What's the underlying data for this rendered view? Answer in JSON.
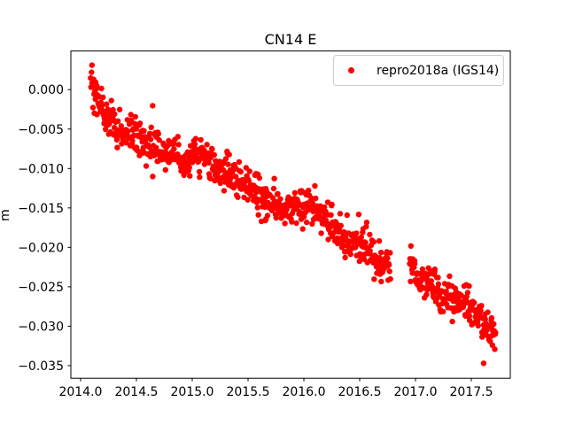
{
  "chart_data": {
    "type": "scatter",
    "title": "CN14 E",
    "xlabel": "",
    "ylabel": "m",
    "xlim": [
      2013.913,
      2017.849
    ],
    "ylim": [
      -0.0366,
      0.0049
    ],
    "grid": false,
    "xticks": {
      "values": [
        2014.0,
        2014.5,
        2015.0,
        2015.5,
        2016.0,
        2016.5,
        2017.0,
        2017.5
      ],
      "labels": [
        "2014.0",
        "2014.5",
        "2015.0",
        "2015.5",
        "2016.0",
        "2016.5",
        "2017.0",
        "2017.5"
      ]
    },
    "yticks": {
      "values": [
        0.0,
        -0.005,
        -0.01,
        -0.015,
        -0.02,
        -0.025,
        -0.03,
        -0.035
      ],
      "labels": [
        "0.000",
        "−0.005",
        "−0.010",
        "−0.015",
        "−0.020",
        "−0.025",
        "−0.030",
        "−0.035"
      ]
    },
    "legend": {
      "position": "upper right",
      "entries": [
        {
          "label": "repro2018a (IGS14)",
          "color": "#ff0000",
          "marker": "circle"
        }
      ]
    },
    "series": [
      {
        "name": "repro2018a (IGS14)",
        "color": "#ff0000",
        "marker_radius_px": 3.2,
        "x_start": 2014.09,
        "x_end": 2017.72,
        "points_per_year": 260,
        "gaps": [
          [
            2016.775,
            2016.945
          ]
        ],
        "noise_std": 0.00115,
        "outlier_rate": 0.012,
        "outlier_scale": 0.003,
        "seed": 42,
        "trend": [
          [
            2014.09,
            0.0006
          ],
          [
            2014.13,
            -0.0005
          ],
          [
            2014.18,
            -0.002
          ],
          [
            2014.25,
            -0.0036
          ],
          [
            2014.33,
            -0.0046
          ],
          [
            2014.42,
            -0.0056
          ],
          [
            2014.52,
            -0.0064
          ],
          [
            2014.65,
            -0.007
          ],
          [
            2014.8,
            -0.008
          ],
          [
            2014.95,
            -0.0092
          ],
          [
            2015.05,
            -0.0078
          ],
          [
            2015.12,
            -0.0088
          ],
          [
            2015.25,
            -0.01
          ],
          [
            2015.4,
            -0.0114
          ],
          [
            2015.55,
            -0.0128
          ],
          [
            2015.7,
            -0.0144
          ],
          [
            2015.82,
            -0.015
          ],
          [
            2015.92,
            -0.0147
          ],
          [
            2016.02,
            -0.0152
          ],
          [
            2016.12,
            -0.0156
          ],
          [
            2016.25,
            -0.0172
          ],
          [
            2016.4,
            -0.0192
          ],
          [
            2016.55,
            -0.0202
          ],
          [
            2016.68,
            -0.0216
          ],
          [
            2016.775,
            -0.0226
          ],
          [
            2016.95,
            -0.0222
          ],
          [
            2017.05,
            -0.024
          ],
          [
            2017.18,
            -0.0252
          ],
          [
            2017.32,
            -0.0263
          ],
          [
            2017.45,
            -0.0272
          ],
          [
            2017.56,
            -0.0288
          ],
          [
            2017.65,
            -0.03
          ],
          [
            2017.72,
            -0.0307
          ]
        ],
        "extra_points": [
          [
            2014.102,
            0.0031
          ],
          [
            2014.098,
            0.0022
          ],
          [
            2015.62,
            -0.0167
          ],
          [
            2015.66,
            -0.0164
          ],
          [
            2017.33,
            -0.0294
          ],
          [
            2017.61,
            -0.0347
          ]
        ]
      }
    ],
    "axis_color": "#000000",
    "tick_label_color": "#000000",
    "background": "#ffffff"
  }
}
